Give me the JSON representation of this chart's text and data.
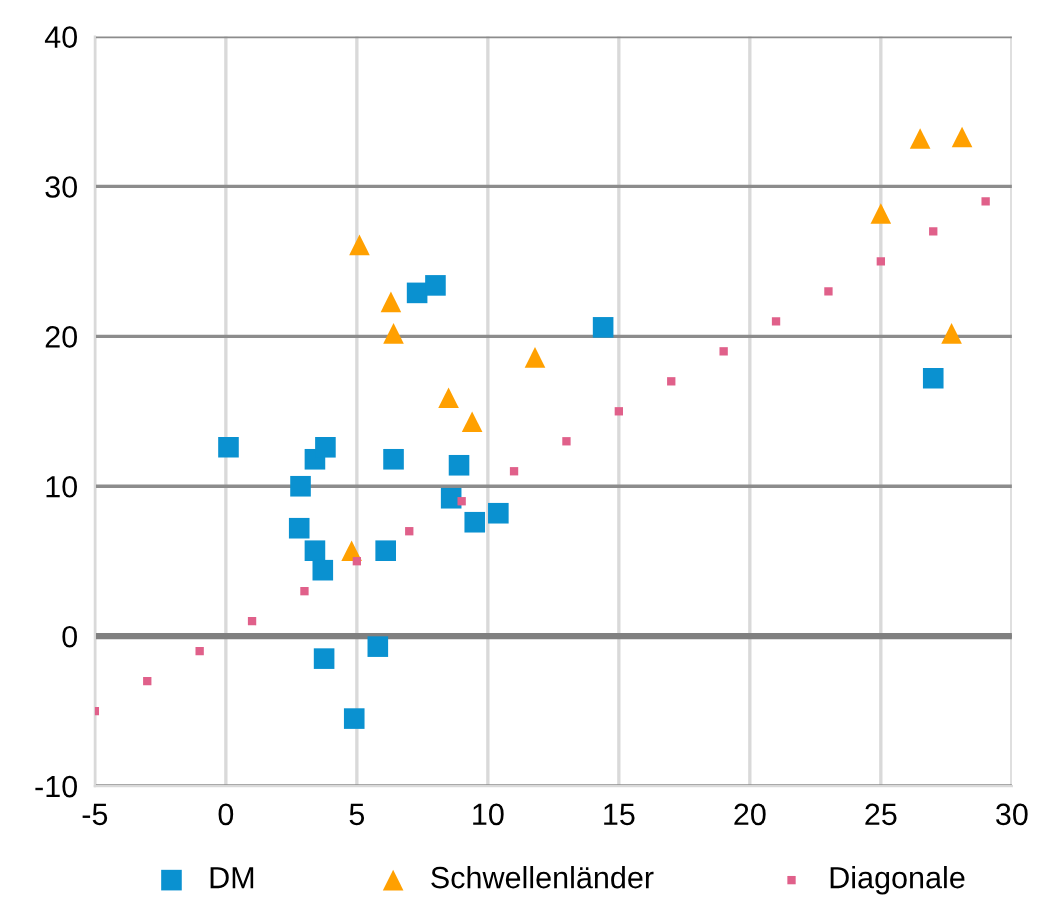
{
  "chart_data": {
    "type": "scatter",
    "xlim": [
      -5,
      30
    ],
    "ylim": [
      -10,
      40
    ],
    "xticks": [
      -5,
      0,
      5,
      10,
      15,
      20,
      25,
      30
    ],
    "yticks": [
      -10,
      0,
      10,
      20,
      30,
      40
    ],
    "grid": true,
    "legend": "bottom",
    "ref_lines": [
      {
        "axis": "y",
        "value": 0,
        "color": "#808080"
      }
    ],
    "series": [
      {
        "name": "DM",
        "color": "#0a91d0",
        "marker": "square",
        "x": [
          0.1,
          2.85,
          2.8,
          3.4,
          3.7,
          3.4,
          3.8,
          3.75,
          5.8,
          4.9,
          6.1,
          6.4,
          7.3,
          8.0,
          8.6,
          8.9,
          9.5,
          10.4,
          14.4,
          27.0
        ],
        "values": [
          12.6,
          10.0,
          7.2,
          5.7,
          4.4,
          11.8,
          12.6,
          -1.5,
          -0.7,
          -5.5,
          5.7,
          11.8,
          22.9,
          23.4,
          9.2,
          11.4,
          7.6,
          8.2,
          20.6,
          17.2
        ]
      },
      {
        "name": "Schwellenländer",
        "color": "#ffa000",
        "marker": "triangle",
        "x": [
          5.1,
          6.3,
          6.4,
          8.5,
          9.4,
          11.8,
          4.8,
          25.0,
          26.5,
          28.1,
          27.7
        ],
        "values": [
          26.1,
          22.3,
          20.2,
          15.9,
          14.3,
          18.6,
          5.7,
          28.2,
          33.2,
          33.3,
          20.2
        ]
      },
      {
        "name": "Diagonale",
        "color": "#e0608a",
        "marker": "square",
        "x": [
          -5,
          -3,
          -1,
          1,
          3,
          5,
          7,
          9,
          11,
          13,
          15,
          17,
          19,
          21,
          23,
          25,
          27,
          29
        ],
        "values": [
          -5,
          -3,
          -1,
          1,
          3,
          5,
          7,
          9,
          11,
          13,
          15,
          17,
          19,
          21,
          23,
          25,
          27,
          29
        ]
      }
    ]
  }
}
